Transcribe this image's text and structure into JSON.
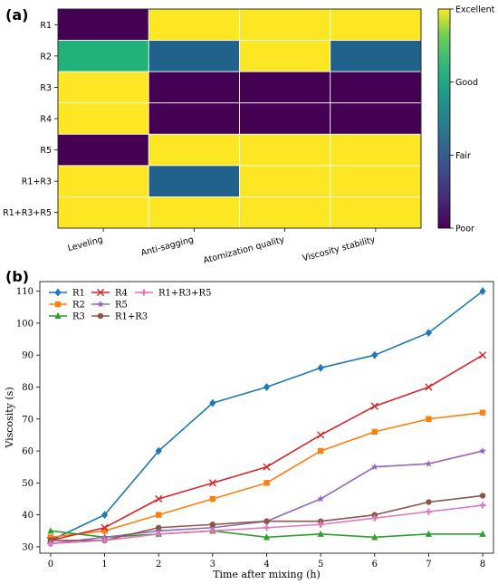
{
  "panel_labels": {
    "a": "(a)",
    "b": "(b)"
  },
  "chart_data": [
    {
      "type": "heatmap",
      "rows": [
        "R1",
        "R2",
        "R3",
        "R4",
        "R5",
        "R1+R3",
        "R1+R3+R5"
      ],
      "columns": [
        "Leveling",
        "Anti-sagging",
        "Atomization quality",
        "Viscosity stability"
      ],
      "scale_labels": [
        "Poor",
        "Fair",
        "Good",
        "Excellent"
      ],
      "values": [
        [
          "Poor",
          "Excellent",
          "Excellent",
          "Excellent"
        ],
        [
          "Good",
          "Fair",
          "Excellent",
          "Fair"
        ],
        [
          "Excellent",
          "Poor",
          "Poor",
          "Poor"
        ],
        [
          "Excellent",
          "Poor",
          "Poor",
          "Poor"
        ],
        [
          "Poor",
          "Excellent",
          "Excellent",
          "Excellent"
        ],
        [
          "Excellent",
          "Fair",
          "Excellent",
          "Excellent"
        ],
        [
          "Excellent",
          "Excellent",
          "Excellent",
          "Excellent"
        ]
      ],
      "colormap": "viridis",
      "colors": {
        "Poor": "#440154",
        "Fair": "#21628c",
        "Good": "#20b278",
        "Excellent": "#fde725"
      },
      "colorbar_position": "right"
    },
    {
      "type": "line",
      "xlabel": "Time after mixing (h)",
      "ylabel": "Viscosity (s)",
      "x": [
        0,
        1,
        2,
        3,
        4,
        5,
        6,
        7,
        8
      ],
      "xlim": [
        -0.2,
        8.2
      ],
      "ylim": [
        28,
        113
      ],
      "xticks": [
        0,
        1,
        2,
        3,
        4,
        5,
        6,
        7,
        8
      ],
      "yticks": [
        30,
        40,
        50,
        60,
        70,
        80,
        90,
        100,
        110
      ],
      "legend_position": "top-left",
      "series": [
        {
          "name": "R1",
          "color": "#1f77b4",
          "marker": "diamond",
          "values": [
            32,
            40,
            60,
            75,
            80,
            86,
            90,
            97,
            110
          ]
        },
        {
          "name": "R2",
          "color": "#ff7f0e",
          "marker": "square",
          "values": [
            33,
            35,
            40,
            45,
            50,
            60,
            66,
            70,
            72
          ]
        },
        {
          "name": "R3",
          "color": "#2ca02c",
          "marker": "triangle",
          "values": [
            35,
            33,
            34,
            35,
            33,
            34,
            33,
            34,
            34
          ]
        },
        {
          "name": "R4",
          "color": "#d62728",
          "marker": "x",
          "values": [
            32,
            36,
            45,
            50,
            55,
            65,
            74,
            80,
            90
          ]
        },
        {
          "name": "R5",
          "color": "#9467bd",
          "marker": "star",
          "values": [
            31,
            33,
            35,
            36,
            38,
            45,
            55,
            56,
            60
          ]
        },
        {
          "name": "R1+R3",
          "color": "#8c564b",
          "marker": "circle",
          "values": [
            32,
            32,
            36,
            37,
            38,
            38,
            40,
            44,
            46
          ]
        },
        {
          "name": "R1+R3+R5",
          "color": "#e377c2",
          "marker": "plus",
          "values": [
            31,
            32,
            34,
            35,
            36,
            37,
            39,
            41,
            43
          ]
        }
      ]
    }
  ]
}
